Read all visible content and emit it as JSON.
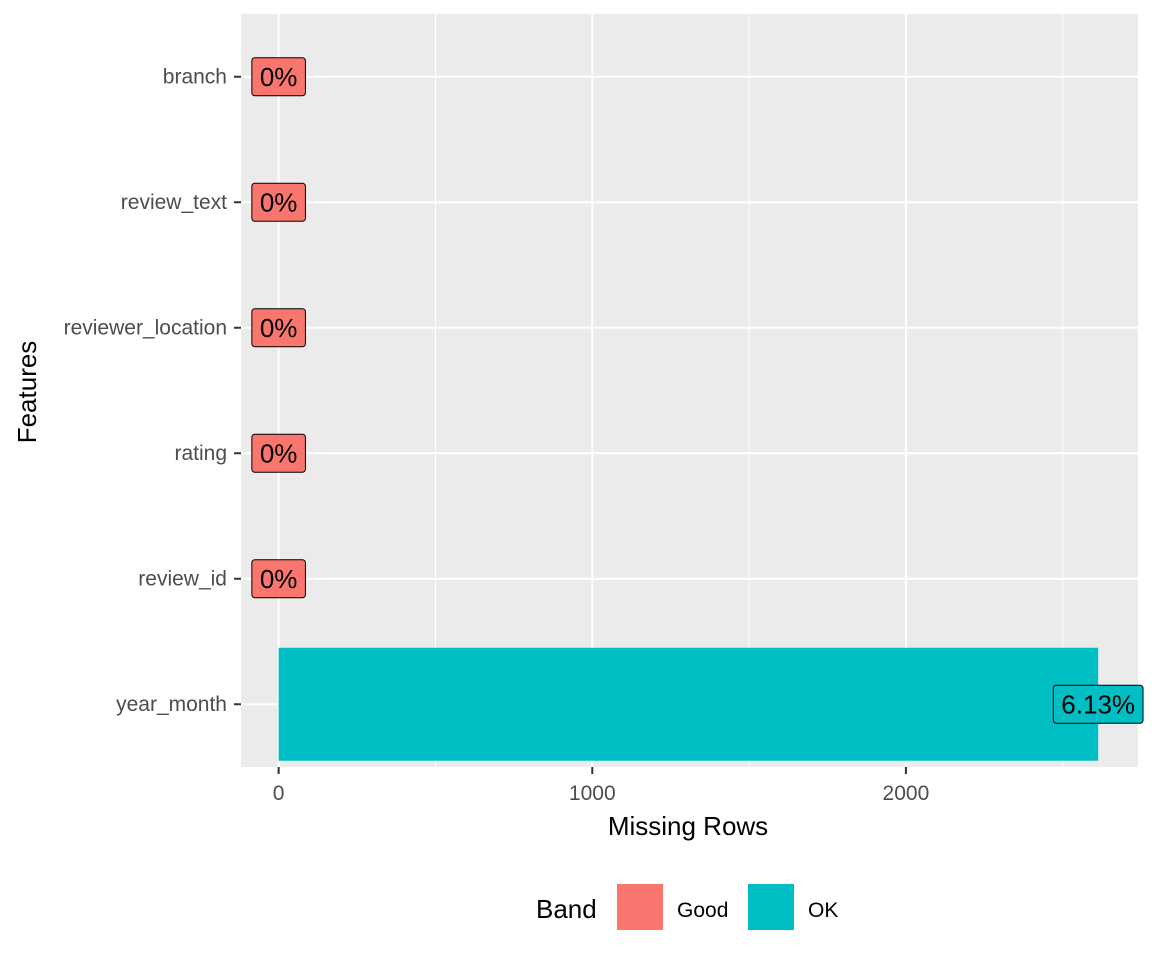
{
  "chart_data": {
    "type": "bar",
    "orientation": "horizontal",
    "xlabel": "Missing Rows",
    "ylabel": "Features",
    "xlim": [
      -120,
      2740
    ],
    "xticks": [
      0,
      1000,
      2000
    ],
    "grid": true,
    "categories": [
      "branch",
      "review_text",
      "reviewer_location",
      "rating",
      "review_id",
      "year_month"
    ],
    "values": [
      0,
      0,
      0,
      0,
      0,
      2613
    ],
    "labels": [
      "0%",
      "0%",
      "0%",
      "0%",
      "0%",
      "6.13%"
    ],
    "bands": [
      "Good",
      "Good",
      "Good",
      "Good",
      "Good",
      "OK"
    ],
    "legend": {
      "title": "Band",
      "position": "bottom",
      "items": [
        {
          "name": "Good",
          "color": "#F8766D"
        },
        {
          "name": "OK",
          "color": "#00BFC4"
        }
      ]
    },
    "colors": {
      "panel_background": "#EBEBEB",
      "grid": "#FFFFFF"
    }
  }
}
